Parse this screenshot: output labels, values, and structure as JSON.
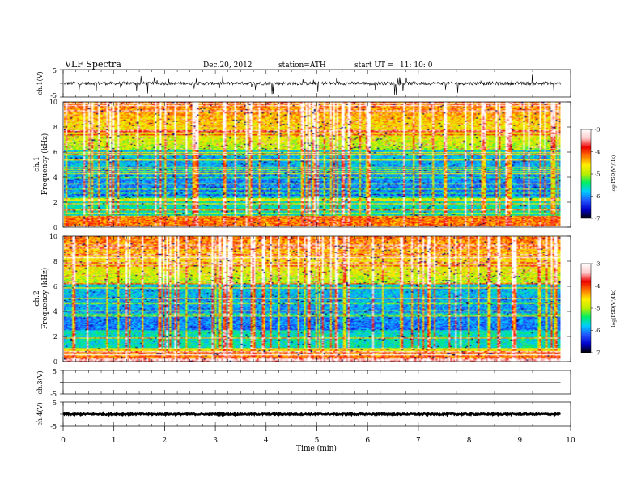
{
  "header": {
    "title": "VLF  Spectra",
    "date": "Dec.20, 2012",
    "station": "station=ATH",
    "start_label": "start  UT  =",
    "start_time": "11: 10: 0"
  },
  "chart_data": [
    {
      "type": "line",
      "name": "ch1-waveform",
      "ylabel": "ch.1(V)",
      "ylim": [
        -5,
        5
      ],
      "ytick_labels": [
        "5",
        "-5"
      ],
      "baseline": 0,
      "amplitude": 1.2
    },
    {
      "type": "heatmap",
      "name": "ch1-spectrogram",
      "ylabel_channel": "ch.1",
      "ylabel": "Frequency  (kHz)",
      "ylim": [
        0,
        10
      ],
      "ytick_labels": [
        "0",
        "2",
        "4",
        "6",
        "8",
        "10"
      ],
      "colorbar": {
        "label": "log(PSD(V²/Hz)",
        "range": [
          -7,
          -3
        ],
        "tick_labels": [
          "-3",
          "-4",
          "-5",
          "-6",
          "-7"
        ]
      }
    },
    {
      "type": "heatmap",
      "name": "ch2-spectrogram",
      "ylabel_channel": "ch.2",
      "ylabel": "Frequency  (kHz)",
      "ylim": [
        0,
        10
      ],
      "ytick_labels": [
        "0",
        "2",
        "4",
        "6",
        "8",
        "10"
      ],
      "colorbar": {
        "label": "log(PSD(V²/Hz)",
        "range": [
          -7,
          -3
        ],
        "tick_labels": [
          "-3",
          "-4",
          "-5",
          "-6",
          "-7"
        ]
      }
    },
    {
      "type": "line",
      "name": "ch3-waveform",
      "ylabel": "ch.3(V)",
      "ylim": [
        -5,
        5
      ],
      "ytick_labels": [
        "5",
        "-5"
      ],
      "baseline": 0,
      "amplitude": 0.1
    },
    {
      "type": "line",
      "name": "ch4-waveform",
      "ylabel": "ch.4(V)",
      "ylim": [
        -5,
        5
      ],
      "ytick_labels": [
        "5",
        "-5"
      ],
      "baseline": 0,
      "amplitude": 0.6
    }
  ],
  "xaxis": {
    "label": "Time  (min)",
    "range": [
      0,
      10
    ],
    "data_end": 9.8,
    "tick_labels": [
      "0",
      "1",
      "2",
      "3",
      "4",
      "5",
      "6",
      "7",
      "8",
      "9",
      "10"
    ]
  },
  "colormap": [
    "#000000",
    "#0000cc",
    "#2255ff",
    "#00ccff",
    "#00ee66",
    "#bbee00",
    "#ffee00",
    "#ff7700",
    "#ee0000",
    "#ffcccc",
    "#ffffff"
  ]
}
